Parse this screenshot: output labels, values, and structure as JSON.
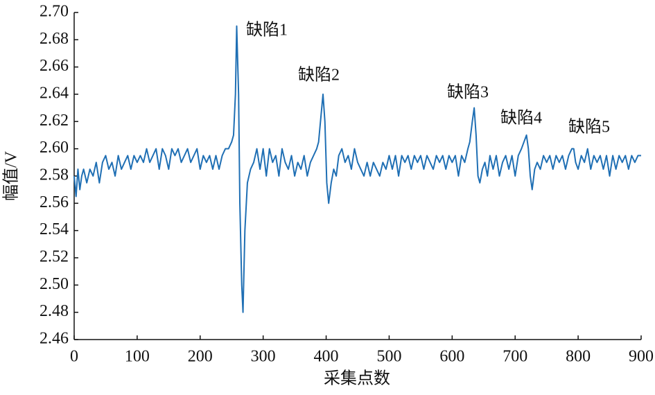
{
  "chart_data": {
    "type": "line",
    "xlabel": "采集点数",
    "ylabel": "幅值/V",
    "annotations": [
      "缺陷1",
      "缺陷2",
      "缺陷3",
      "缺陷4",
      "缺陷5"
    ],
    "xlim": [
      0,
      900
    ],
    "xticks": [
      0,
      100,
      200,
      300,
      400,
      500,
      600,
      700,
      800,
      900
    ],
    "ylim": [
      2.46,
      2.7
    ],
    "yticks": [
      2.46,
      2.48,
      {
        "value": 2.5,
        "label": "2.50"
      },
      2.52,
      2.54,
      2.56,
      2.58,
      {
        "value": 2.6,
        "label": "2.60"
      },
      2.62,
      2.64,
      2.66,
      2.68,
      {
        "value": 2.7,
        "label": "2.70"
      }
    ],
    "grid": false,
    "x": [
      0,
      3,
      6,
      9,
      12,
      15,
      20,
      25,
      30,
      35,
      40,
      45,
      50,
      55,
      60,
      65,
      70,
      75,
      80,
      85,
      90,
      95,
      100,
      105,
      110,
      115,
      120,
      125,
      130,
      135,
      140,
      145,
      150,
      155,
      160,
      165,
      170,
      175,
      180,
      185,
      190,
      195,
      200,
      205,
      210,
      215,
      220,
      225,
      230,
      235,
      240,
      245,
      250,
      253,
      256,
      258,
      261,
      263,
      266,
      268,
      271,
      275,
      280,
      285,
      290,
      295,
      300,
      305,
      310,
      315,
      320,
      325,
      330,
      335,
      340,
      345,
      350,
      355,
      360,
      365,
      370,
      375,
      380,
      385,
      388,
      392,
      395,
      398,
      401,
      404,
      408,
      412,
      416,
      420,
      425,
      430,
      435,
      440,
      445,
      450,
      455,
      460,
      465,
      470,
      475,
      480,
      485,
      490,
      495,
      500,
      505,
      510,
      515,
      520,
      525,
      530,
      535,
      540,
      545,
      550,
      555,
      560,
      565,
      570,
      575,
      580,
      585,
      590,
      595,
      600,
      605,
      610,
      615,
      620,
      625,
      628,
      632,
      635,
      638,
      641,
      644,
      648,
      652,
      656,
      660,
      665,
      670,
      675,
      680,
      685,
      690,
      695,
      700,
      705,
      710,
      714,
      718,
      721,
      724,
      727,
      731,
      735,
      740,
      745,
      750,
      755,
      760,
      765,
      770,
      775,
      780,
      785,
      790,
      793,
      796,
      800,
      805,
      810,
      815,
      820,
      825,
      830,
      835,
      840,
      845,
      850,
      855,
      860,
      865,
      870,
      875,
      880,
      885,
      890,
      895,
      900
    ],
    "series": [
      {
        "color": "#1f6fb4",
        "values": [
          2.58,
          2.565,
          2.585,
          2.57,
          2.58,
          2.585,
          2.575,
          2.585,
          2.58,
          2.59,
          2.575,
          2.59,
          2.595,
          2.585,
          2.59,
          2.58,
          2.595,
          2.585,
          2.59,
          2.595,
          2.585,
          2.595,
          2.59,
          2.595,
          2.59,
          2.6,
          2.59,
          2.595,
          2.6,
          2.585,
          2.6,
          2.595,
          2.585,
          2.6,
          2.595,
          2.6,
          2.59,
          2.595,
          2.6,
          2.59,
          2.595,
          2.6,
          2.585,
          2.595,
          2.59,
          2.595,
          2.585,
          2.595,
          2.585,
          2.595,
          2.6,
          2.6,
          2.605,
          2.61,
          2.64,
          2.69,
          2.64,
          2.56,
          2.5,
          2.48,
          2.54,
          2.575,
          2.585,
          2.59,
          2.6,
          2.585,
          2.6,
          2.58,
          2.6,
          2.59,
          2.595,
          2.58,
          2.6,
          2.59,
          2.585,
          2.595,
          2.58,
          2.59,
          2.585,
          2.595,
          2.58,
          2.59,
          2.595,
          2.6,
          2.605,
          2.625,
          2.64,
          2.62,
          2.575,
          2.56,
          2.575,
          2.585,
          2.58,
          2.595,
          2.6,
          2.59,
          2.595,
          2.585,
          2.6,
          2.59,
          2.585,
          2.58,
          2.59,
          2.58,
          2.59,
          2.585,
          2.58,
          2.59,
          2.585,
          2.595,
          2.585,
          2.595,
          2.58,
          2.595,
          2.59,
          2.595,
          2.585,
          2.595,
          2.59,
          2.595,
          2.585,
          2.595,
          2.59,
          2.585,
          2.595,
          2.59,
          2.595,
          2.585,
          2.595,
          2.59,
          2.595,
          2.58,
          2.595,
          2.59,
          2.6,
          2.605,
          2.62,
          2.63,
          2.61,
          2.58,
          2.575,
          2.585,
          2.59,
          2.58,
          2.595,
          2.585,
          2.595,
          2.58,
          2.59,
          2.595,
          2.585,
          2.595,
          2.58,
          2.595,
          2.6,
          2.605,
          2.61,
          2.6,
          2.58,
          2.57,
          2.585,
          2.59,
          2.585,
          2.595,
          2.59,
          2.595,
          2.585,
          2.595,
          2.59,
          2.595,
          2.585,
          2.595,
          2.6,
          2.6,
          2.59,
          2.585,
          2.595,
          2.59,
          2.6,
          2.585,
          2.595,
          2.59,
          2.595,
          2.585,
          2.595,
          2.58,
          2.595,
          2.585,
          2.595,
          2.59,
          2.595,
          2.585,
          2.595,
          2.59,
          2.595,
          2.595
        ]
      }
    ]
  }
}
